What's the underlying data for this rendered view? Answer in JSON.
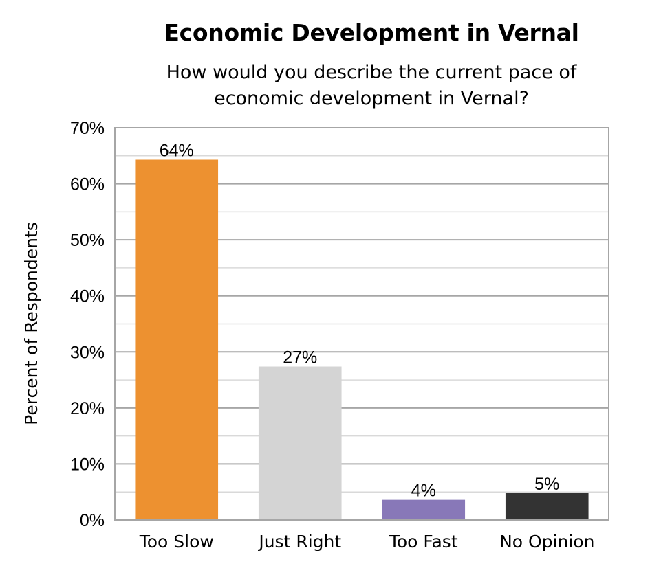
{
  "chart_data": {
    "type": "bar",
    "title": "Economic Development in Vernal",
    "subtitle_lines": [
      "How would you describe the current pace of",
      "economic development in Vernal?"
    ],
    "ylabel": "Percent of Respondents",
    "xlabel": "",
    "ylim": [
      0,
      70
    ],
    "yticks": [
      0,
      10,
      20,
      30,
      40,
      50,
      60,
      70
    ],
    "ytick_labels": [
      "0%",
      "10%",
      "20%",
      "30%",
      "40%",
      "50%",
      "60%",
      "70%"
    ],
    "categories": [
      "Too Slow",
      "Just Right",
      "Too Fast",
      "No Opinion"
    ],
    "values": [
      64.3,
      27.4,
      3.6,
      4.8
    ],
    "data_labels": [
      "64%",
      "27%",
      "4%",
      "5%"
    ],
    "colors": [
      "#ED9130",
      "#D4D4D4",
      "#8878B8",
      "#333333"
    ],
    "grid": true,
    "minor_grid": true,
    "legend": "none"
  }
}
